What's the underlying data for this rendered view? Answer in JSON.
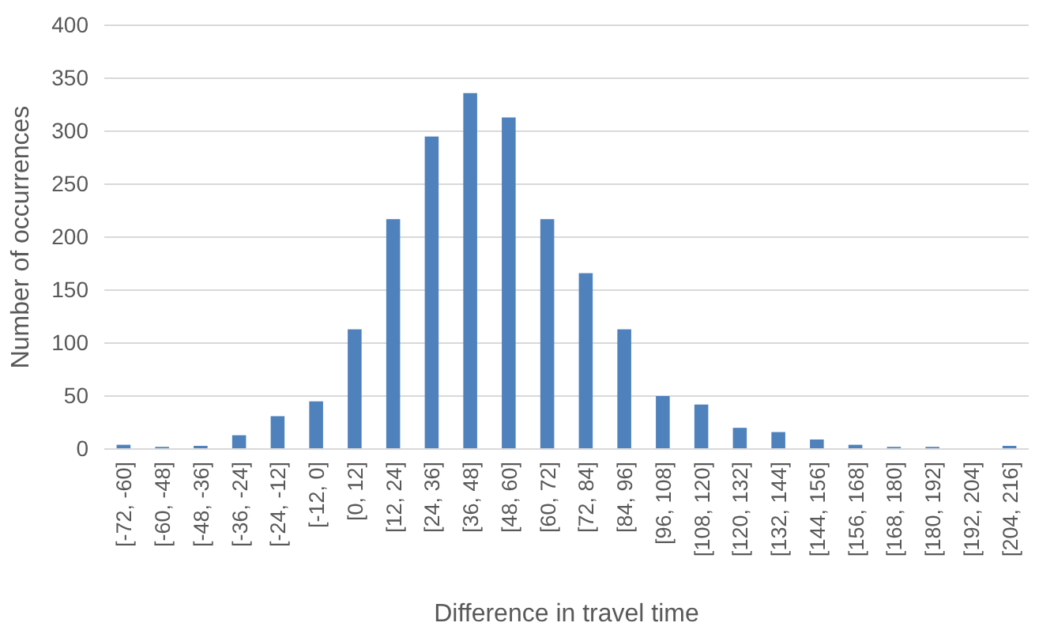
{
  "chart_data": {
    "type": "bar",
    "xlabel": "Difference in travel time",
    "ylabel": "Number of occurrences",
    "categories": [
      "[-72, -60]",
      "[-60, -48]",
      "[-48, -36]",
      "[-36, -24]",
      "[-24, -12]",
      "[-12, 0]",
      "[0, 12]",
      "[12, 24]",
      "[24, 36]",
      "[36, 48]",
      "[48, 60]",
      "[60, 72]",
      "[72, 84]",
      "[84, 96]",
      "[96, 108]",
      "[108, 120]",
      "[120, 132]",
      "[132, 144]",
      "[144, 156]",
      "[156, 168]",
      "[168, 180]",
      "[180, 192]",
      "[192, 204]",
      "[204, 216]"
    ],
    "values": [
      4,
      2,
      3,
      13,
      31,
      45,
      113,
      217,
      295,
      336,
      313,
      217,
      166,
      113,
      50,
      42,
      20,
      16,
      9,
      4,
      2,
      2,
      0,
      3
    ],
    "color": "#4f81bd",
    "ylim": [
      0,
      400
    ],
    "yticks": [
      0,
      50,
      100,
      150,
      200,
      250,
      300,
      350,
      400
    ],
    "grid": "y"
  }
}
